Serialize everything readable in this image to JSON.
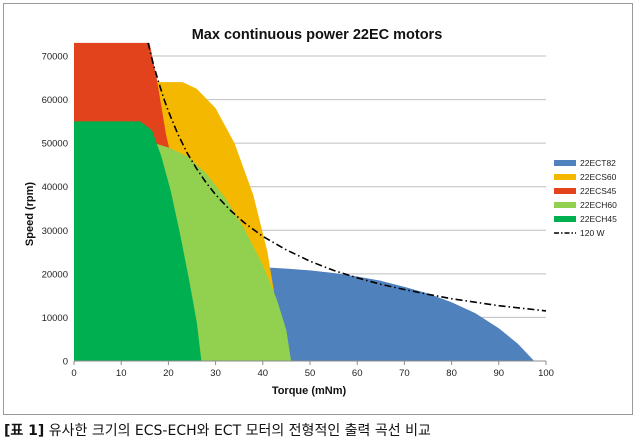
{
  "chart_data": {
    "type": "area",
    "title": "Max continuous power 22EC motors",
    "xlabel": "Torque (mNm)",
    "ylabel": "Speed (rpm)",
    "xlim": [
      0,
      100
    ],
    "ylim": [
      0,
      70000
    ],
    "x_ticks": [
      0,
      10,
      20,
      30,
      40,
      50,
      60,
      70,
      80,
      90,
      100
    ],
    "y_ticks": [
      0,
      10000,
      20000,
      30000,
      40000,
      50000,
      60000,
      70000
    ],
    "grid": "horizontal",
    "legend_position": "right",
    "series": [
      {
        "name": "22ECT82",
        "type": "area",
        "color": "#4f81bd",
        "points": [
          [
            0,
            0
          ],
          [
            0,
            21500
          ],
          [
            40,
            21500
          ],
          [
            45,
            21200
          ],
          [
            50,
            20800
          ],
          [
            55,
            20200
          ],
          [
            60,
            19400
          ],
          [
            65,
            18400
          ],
          [
            70,
            17000
          ],
          [
            75,
            15500
          ],
          [
            80,
            13500
          ],
          [
            85,
            11000
          ],
          [
            90,
            7500
          ],
          [
            94,
            4000
          ],
          [
            97.5,
            0
          ]
        ]
      },
      {
        "name": "22ECS60",
        "type": "area",
        "color": "#f5b800",
        "points": [
          [
            0,
            0
          ],
          [
            0,
            64000
          ],
          [
            23,
            64000
          ],
          [
            26,
            62500
          ],
          [
            30,
            58000
          ],
          [
            34,
            50000
          ],
          [
            38,
            38000
          ],
          [
            41,
            25000
          ],
          [
            42.5,
            15000
          ],
          [
            43.5,
            0
          ]
        ]
      },
      {
        "name": "22ECS45",
        "type": "area",
        "color": "#e2431d",
        "points": [
          [
            0,
            0
          ],
          [
            0,
            73000
          ],
          [
            16,
            73000
          ],
          [
            17.5,
            65000
          ],
          [
            19.5,
            52000
          ],
          [
            21,
            45000
          ],
          [
            22,
            38000
          ],
          [
            22.5,
            0
          ]
        ]
      },
      {
        "name": "22ECH60",
        "type": "area",
        "color": "#92d050",
        "points": [
          [
            0,
            0
          ],
          [
            0,
            50000
          ],
          [
            17,
            50000
          ],
          [
            20,
            49000
          ],
          [
            24,
            47000
          ],
          [
            28,
            43000
          ],
          [
            32,
            37500
          ],
          [
            36,
            30500
          ],
          [
            40,
            22000
          ],
          [
            43,
            14000
          ],
          [
            45,
            7000
          ],
          [
            46,
            0
          ]
        ]
      },
      {
        "name": "22ECH45",
        "type": "area",
        "color": "#00b050",
        "points": [
          [
            0,
            0
          ],
          [
            0,
            55000
          ],
          [
            14,
            55000
          ],
          [
            16.5,
            53000
          ],
          [
            18.5,
            47000
          ],
          [
            20.5,
            39000
          ],
          [
            22.5,
            29000
          ],
          [
            24.5,
            18000
          ],
          [
            26,
            9000
          ],
          [
            27,
            0
          ]
        ]
      },
      {
        "name": "120 W",
        "type": "line",
        "color": "#000000",
        "dash": "dash-dot",
        "points": [
          [
            15.7,
            73000
          ],
          [
            16.5,
            69400
          ],
          [
            17,
            67400
          ],
          [
            18,
            63700
          ],
          [
            19,
            60300
          ],
          [
            20,
            57300
          ],
          [
            22,
            52100
          ],
          [
            24,
            47700
          ],
          [
            26,
            44100
          ],
          [
            28,
            40900
          ],
          [
            30,
            38200
          ],
          [
            33,
            34700
          ],
          [
            36,
            31800
          ],
          [
            40,
            28600
          ],
          [
            45,
            25500
          ],
          [
            50,
            22900
          ],
          [
            55,
            20800
          ],
          [
            60,
            19100
          ],
          [
            65,
            17600
          ],
          [
            70,
            16400
          ],
          [
            75,
            15300
          ],
          [
            80,
            14300
          ],
          [
            85,
            13500
          ],
          [
            90,
            12700
          ],
          [
            95,
            12100
          ],
          [
            100,
            11500
          ]
        ]
      }
    ],
    "draw_order": [
      "22ECT82",
      "22ECS60",
      "22ECS45",
      "22ECH60",
      "22ECH45",
      "120 W"
    ]
  },
  "caption": {
    "prefix": "[표 1]",
    "text": " 유사한 크기의 ECS-ECH와 ECT 모터의 전형적인 출력 곡선 비교"
  }
}
